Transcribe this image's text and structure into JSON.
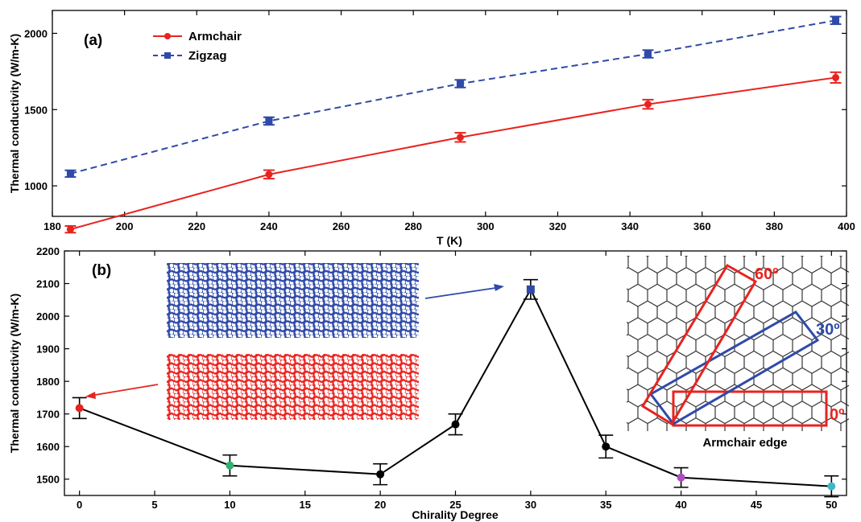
{
  "colors": {
    "armchair": "#e8231f",
    "zigzag": "#2f4aa8",
    "panel_b_line": "#000000",
    "point_0": "#e8231f",
    "point_10": "#2db36b",
    "point_20": "#000000",
    "point_25": "#000000",
    "point_30": "#2f4aa8",
    "point_35": "#000000",
    "point_40": "#b04cc2",
    "point_50": "#3cb8c8",
    "lattice_blue": "#2f4aa8",
    "lattice_red": "#e8231f",
    "hex_grid": "#222222"
  },
  "chart_data": [
    {
      "type": "line",
      "panel_label": "(a)",
      "xlabel": "T (K)",
      "ylabel": "Thermal conductivity (W/m-K)",
      "xlim": [
        180,
        400
      ],
      "ylim": [
        800,
        2150
      ],
      "xticks": [
        180,
        200,
        220,
        240,
        260,
        280,
        300,
        320,
        340,
        360,
        380,
        400
      ],
      "yticks": [
        1000,
        1500,
        2000
      ],
      "legend_position": "top-left",
      "series": [
        {
          "name": "Armchair",
          "line_style": "solid",
          "marker": "circle",
          "x": [
            185,
            240,
            293,
            345,
            397
          ],
          "y": [
            715,
            1075,
            1318,
            1535,
            1710
          ],
          "err": [
            22,
            28,
            30,
            30,
            35
          ]
        },
        {
          "name": "Zigzag",
          "line_style": "dashed",
          "marker": "square",
          "x": [
            185,
            240,
            293,
            345,
            397
          ],
          "y": [
            1080,
            1425,
            1670,
            1865,
            2085
          ],
          "err": [
            22,
            25,
            25,
            25,
            25
          ]
        }
      ]
    },
    {
      "type": "line",
      "panel_label": "(b)",
      "xlabel": "Chirality Degree",
      "ylabel": "Thermal conductivity (W/m-K)",
      "xlim": [
        -1,
        51
      ],
      "ylim": [
        1450,
        2200
      ],
      "xticks": [
        0,
        5,
        10,
        15,
        20,
        25,
        30,
        35,
        40,
        45,
        50
      ],
      "yticks": [
        1500,
        1600,
        1700,
        1800,
        1900,
        2000,
        2100,
        2200
      ],
      "series": [
        {
          "x": [
            0,
            10,
            20,
            25,
            30,
            35,
            40,
            50
          ],
          "y": [
            1718,
            1542,
            1515,
            1668,
            2082,
            1600,
            1505,
            1478
          ],
          "err": [
            32,
            32,
            32,
            32,
            30,
            35,
            30,
            32
          ]
        }
      ],
      "inset_angle_labels": [
        "60º",
        "30º",
        "0º"
      ],
      "inset_caption": "Armchair edge"
    }
  ]
}
